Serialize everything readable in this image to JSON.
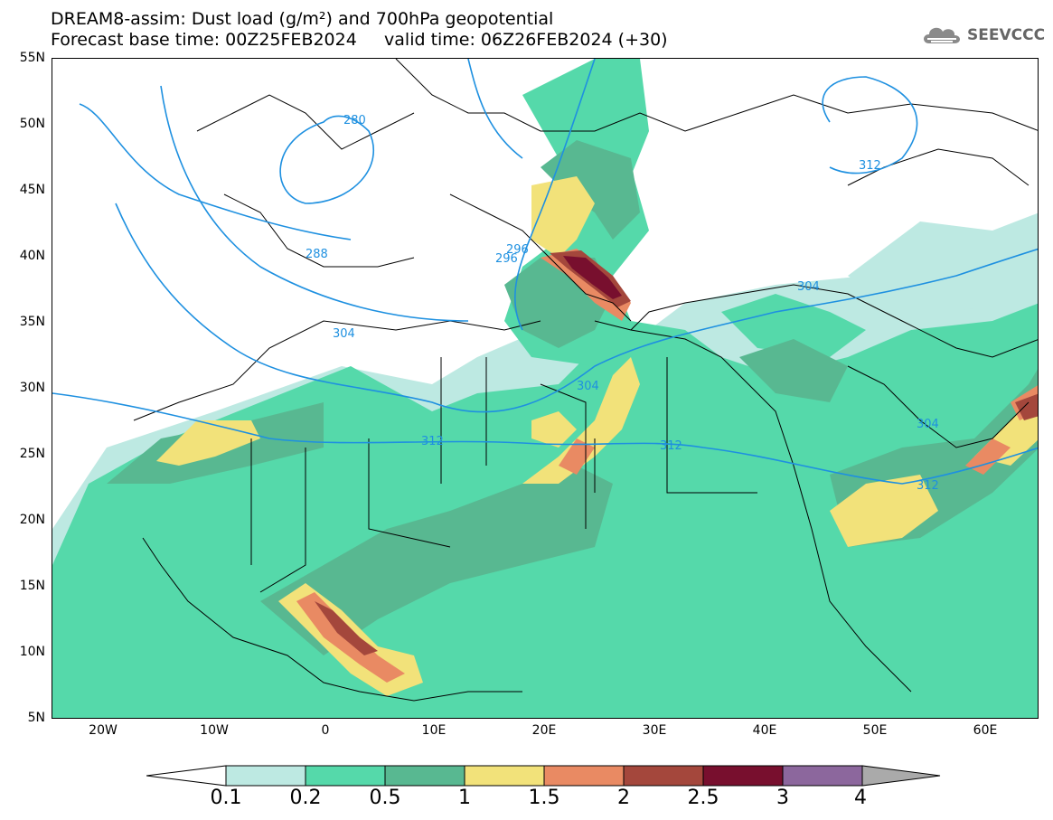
{
  "header": {
    "title_line1": "DREAM8-assim: Dust load (g/m²) and 700hPa geopotential",
    "title_line2": "Forecast base time: 00Z25FEB2024     valid time: 06Z26FEB2024 (+30)"
  },
  "logo": {
    "text": "SEEVCCC",
    "icon": "cloud-icon"
  },
  "map": {
    "lat_labels": [
      "55N",
      "50N",
      "45N",
      "40N",
      "35N",
      "30N",
      "25N",
      "20N",
      "15N",
      "10N",
      "5N"
    ],
    "lon_labels": [
      "20W",
      "10W",
      "0",
      "10E",
      "20E",
      "30E",
      "40E",
      "50E",
      "60E"
    ],
    "contour_labels": [
      "280",
      "288",
      "296",
      "296",
      "304",
      "304",
      "304",
      "304",
      "312",
      "312",
      "312",
      "312"
    ]
  },
  "legend": {
    "labels": [
      "0.1",
      "0.2",
      "0.5",
      "1",
      "1.5",
      "2",
      "2.5",
      "3",
      "4"
    ],
    "colors": [
      "#bde9e2",
      "#55d9aa",
      "#58b891",
      "#f2e27a",
      "#e98a63",
      "#a4473c",
      "#780f2e",
      "#8c679d",
      "#aaaaaa"
    ],
    "under_color": "#ffffff",
    "over_color": "#aaaaaa"
  },
  "colors": {
    "contour": "#1e90e0",
    "border": "#000000"
  }
}
